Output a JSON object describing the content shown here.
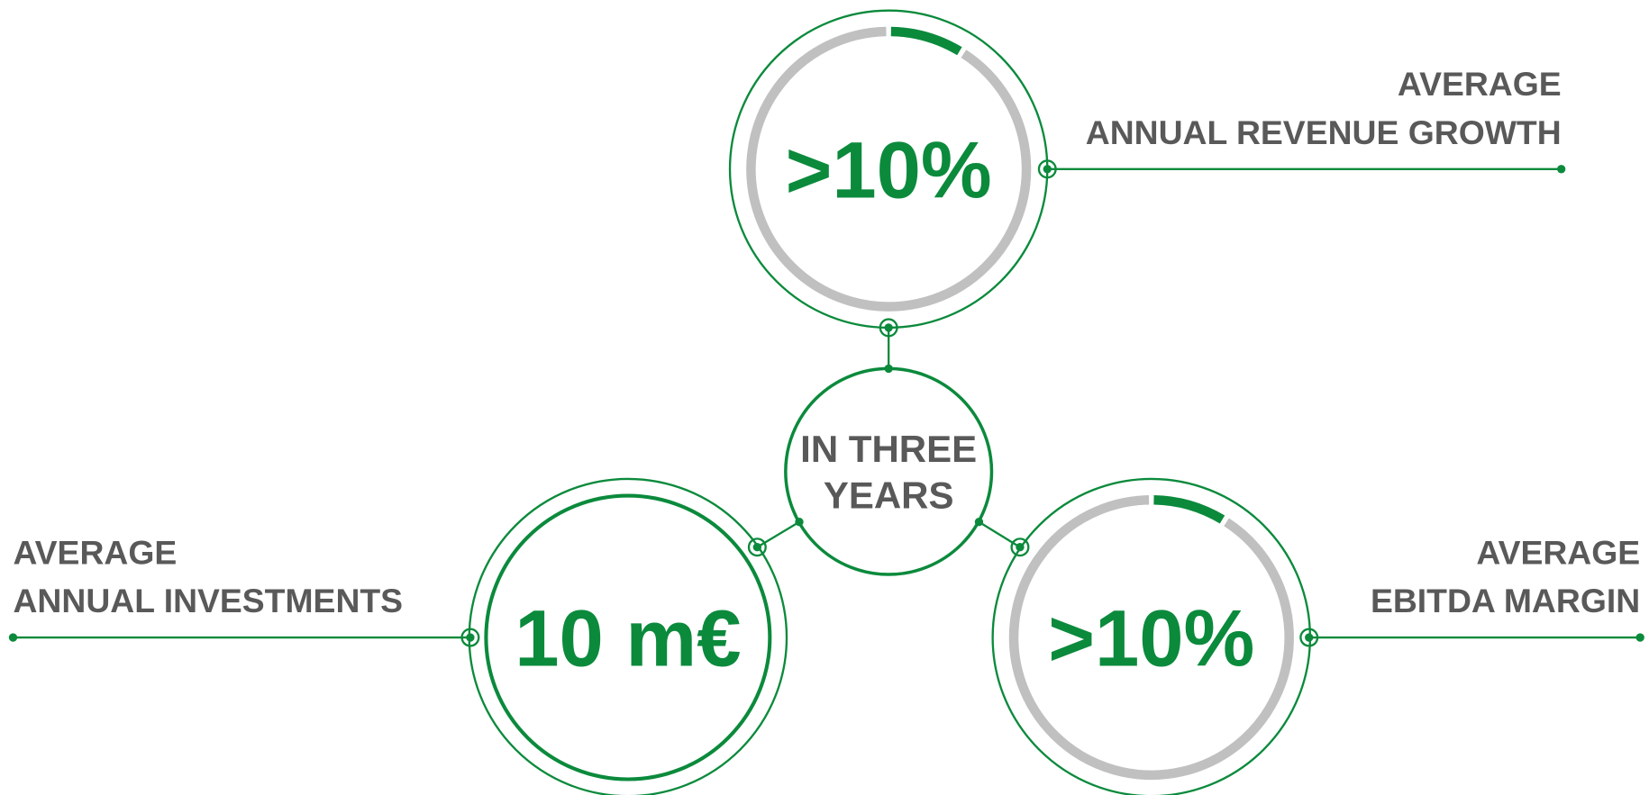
{
  "center": {
    "lines": [
      "IN THREE",
      "YEARS"
    ]
  },
  "items": [
    {
      "value": ">10%",
      "label": [
        "AVERAGE",
        "ANNUAL REVENUE GROWTH"
      ]
    },
    {
      "value": "10 m€",
      "label": [
        "AVERAGE",
        "ANNUAL INVESTMENTS"
      ]
    },
    {
      "value": ">10%",
      "label": [
        "AVERAGE",
        "EBITDA MARGIN"
      ]
    }
  ]
}
